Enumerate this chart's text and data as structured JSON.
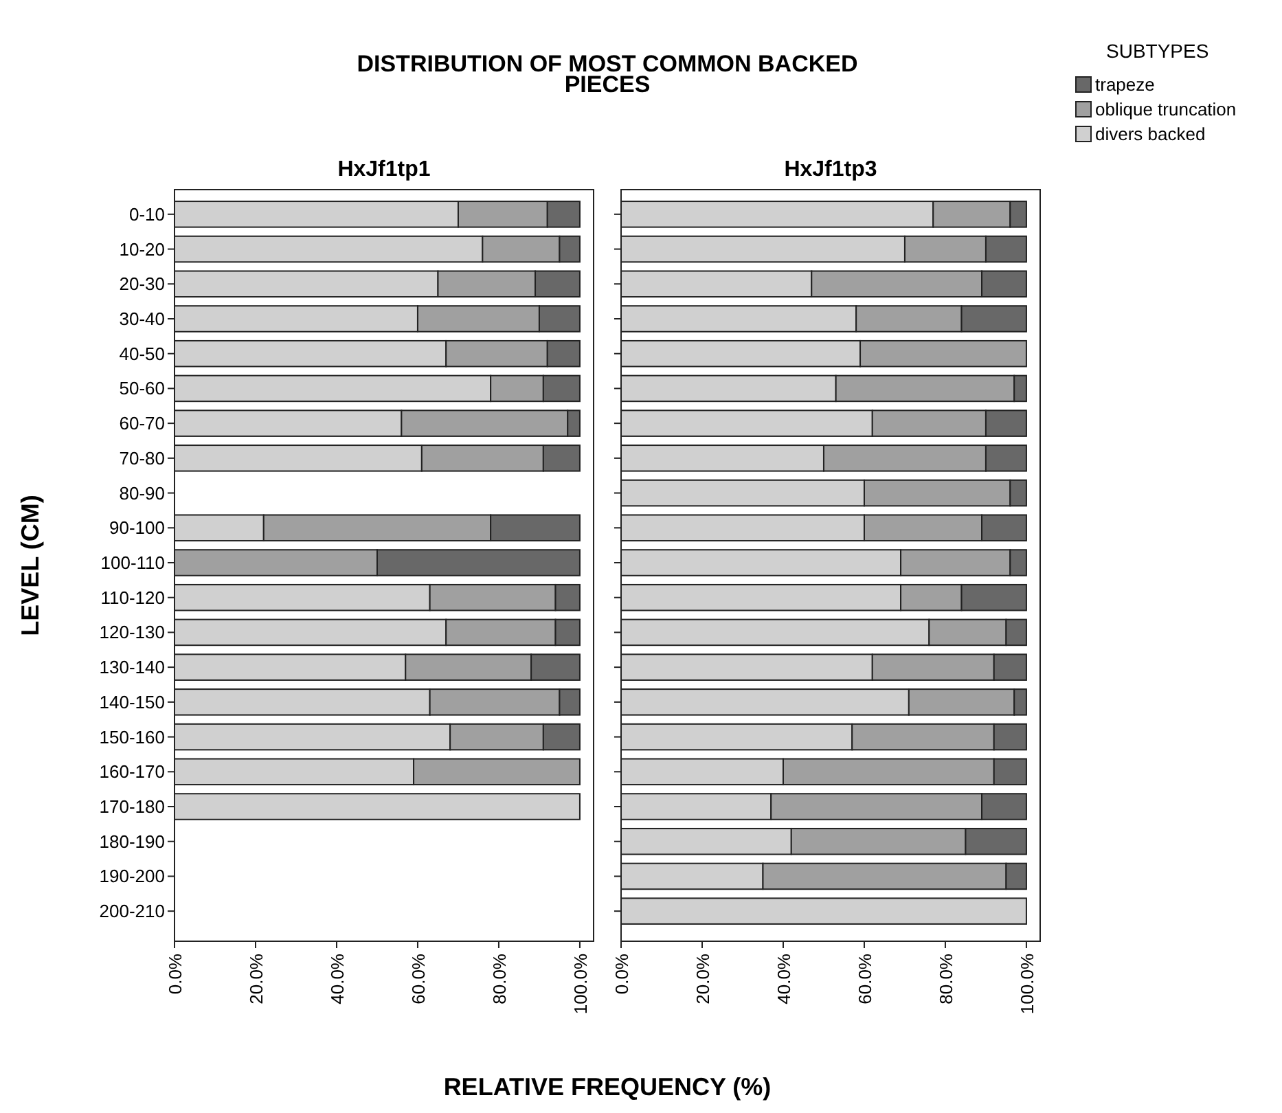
{
  "chart_data": [
    {
      "type": "bar",
      "orientation": "horizontal",
      "stacked": true,
      "title": "DISTRIBUTION OF MOST COMMON BACKED PIECES",
      "subtitle": "HxJf1tp1",
      "xlabel": "RELATIVE FREQUENCY (%)",
      "ylabel": "LEVEL (CM)",
      "categories": [
        "0-10",
        "10-20",
        "20-30",
        "30-40",
        "40-50",
        "50-60",
        "60-70",
        "70-80",
        "80-90",
        "90-100",
        "100-110",
        "110-120",
        "120-130",
        "130-140",
        "140-150",
        "150-160",
        "160-170",
        "170-180",
        "180-190",
        "190-200",
        "200-210"
      ],
      "xlim": [
        0,
        103.4
      ],
      "xticks": [
        {
          "value": 0,
          "label": "0.0%"
        },
        {
          "value": 20,
          "label": "20.0%"
        },
        {
          "value": 40,
          "label": "40.0%"
        },
        {
          "value": 60,
          "label": "60.0%"
        },
        {
          "value": 80,
          "label": "80.0%"
        },
        {
          "value": 100,
          "label": "100.0%"
        }
      ],
      "series": [
        {
          "color": "#d0d0d0",
          "values": [
            70,
            76,
            65,
            60,
            67,
            78,
            56,
            61,
            null,
            22,
            0,
            63,
            67,
            57,
            63,
            68,
            59,
            100,
            null,
            null,
            null
          ]
        },
        {
          "color": "#a0a0a0",
          "values": [
            22,
            19,
            24,
            30,
            25,
            13,
            41,
            30,
            null,
            56,
            50,
            31,
            27,
            31,
            32,
            23,
            41,
            0,
            null,
            null,
            null
          ]
        },
        {
          "color": "#686868",
          "values": [
            8,
            5,
            11,
            10,
            8,
            9,
            3,
            9,
            null,
            22,
            50,
            6,
            6,
            12,
            5,
            9,
            0,
            0,
            null,
            null,
            null
          ]
        }
      ]
    },
    {
      "type": "bar",
      "orientation": "horizontal",
      "stacked": true,
      "subtitle": "HxJf1tp3",
      "tick_labels": "x",
      "legend": "top right",
      "legend_title": "SUBTYPES",
      "categories": [
        null,
        null,
        null,
        null,
        null,
        null,
        null,
        null,
        null,
        null,
        null,
        null,
        null,
        null,
        null,
        null,
        null,
        null,
        null,
        null,
        null
      ],
      "xlim": [
        0,
        103.4
      ],
      "xticks": [
        {
          "value": 0,
          "label": "0.0%"
        },
        {
          "value": 20,
          "label": "20.0%"
        },
        {
          "value": 40,
          "label": "40.0%"
        },
        {
          "value": 60,
          "label": "60.0%"
        },
        {
          "value": 80,
          "label": "80.0%"
        },
        {
          "value": 100,
          "label": "100.0%"
        }
      ],
      "series": [
        {
          "name": "divers backed",
          "color": "#d0d0d0",
          "values": [
            77,
            70,
            47,
            58,
            59,
            53,
            62,
            50,
            60,
            60,
            69,
            69,
            76,
            62,
            71,
            57,
            40,
            37,
            42,
            35,
            100
          ]
        },
        {
          "name": "oblique truncation",
          "color": "#a0a0a0",
          "values": [
            19,
            20,
            42,
            26,
            41,
            44,
            28,
            40,
            36,
            29,
            27,
            15,
            19,
            30,
            26,
            35,
            52,
            52,
            43,
            60,
            0
          ]
        },
        {
          "name": "trapeze",
          "color": "#686868",
          "values": [
            4,
            10,
            11,
            16,
            0,
            3,
            10,
            10,
            4,
            11,
            4,
            16,
            5,
            8,
            3,
            8,
            8,
            11,
            15,
            5,
            0
          ]
        }
      ]
    }
  ]
}
